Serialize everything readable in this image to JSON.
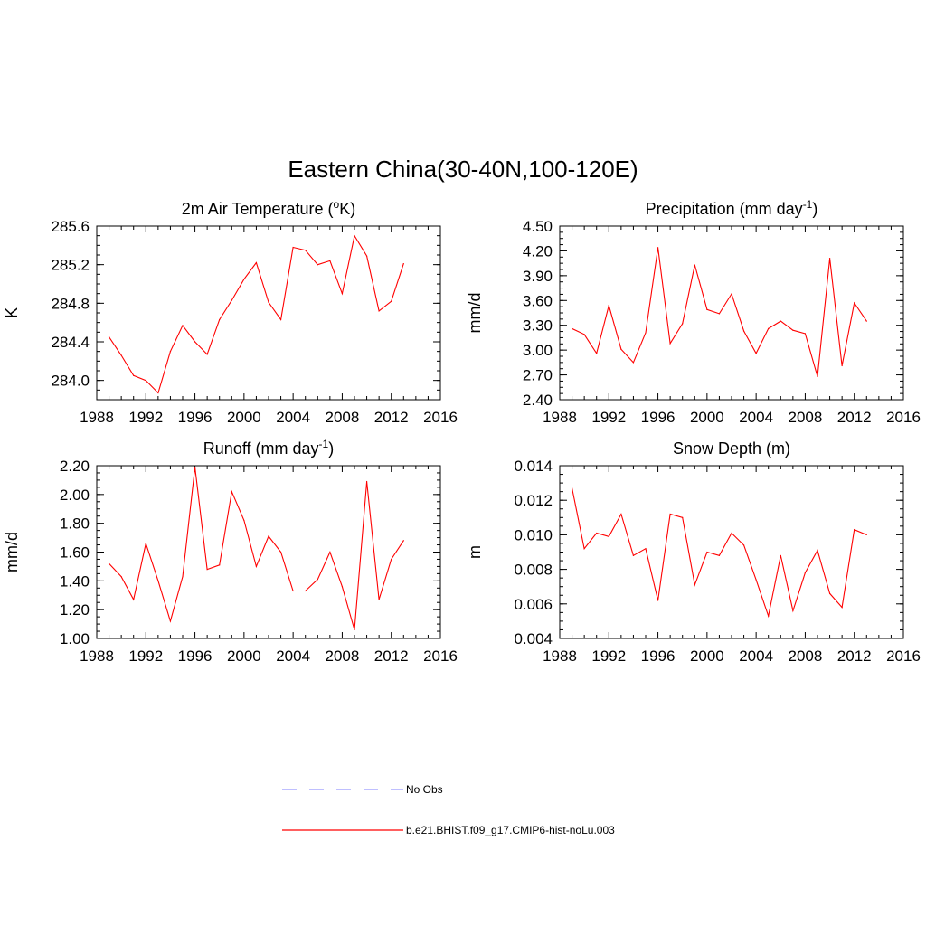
{
  "title": "Eastern China(30-40N,100-120E)",
  "legend": {
    "items": [
      {
        "label": "No Obs",
        "color": "#9999ff",
        "dash": true
      },
      {
        "label": "b.e21.BHIST.f09_g17.CMIP6-hist-noLu.003",
        "color": "#ff0000",
        "dash": false
      }
    ]
  },
  "chart_data": [
    {
      "type": "line",
      "title": "2m Air Temperature (",
      "title_sup": "o",
      "title_after": "K)",
      "ylabel": "K",
      "xlim": [
        1988,
        2016
      ],
      "ylim": [
        283.8,
        285.6
      ],
      "xticks": [
        "1988",
        "1992",
        "1996",
        "2000",
        "2004",
        "2008",
        "2012",
        "2016"
      ],
      "yticks": [
        "284.0",
        "284.4",
        "284.8",
        "285.2",
        "285.6"
      ],
      "series": [
        {
          "color": "#ff0000",
          "x": [
            1989,
            1990,
            1991,
            1992,
            1993,
            1994,
            1995,
            1996,
            1997,
            1998,
            1999,
            2000,
            2001,
            2002,
            2003,
            2004,
            2005,
            2006,
            2007,
            2008,
            2009,
            2010,
            2011,
            2012,
            2013
          ],
          "y": [
            284.45,
            284.26,
            284.05,
            284.0,
            283.87,
            284.3,
            284.57,
            284.4,
            284.27,
            284.63,
            284.83,
            285.05,
            285.22,
            284.81,
            284.63,
            285.38,
            285.35,
            285.2,
            285.24,
            284.9,
            285.5,
            285.29,
            284.72,
            284.82,
            285.21
          ]
        }
      ]
    },
    {
      "type": "line",
      "title": "Precipitation (mm day",
      "title_sup": "-1",
      "title_after": ")",
      "ylabel": "mm/d",
      "xlim": [
        1988,
        2016
      ],
      "ylim": [
        2.4,
        4.5
      ],
      "xticks": [
        "1988",
        "1992",
        "1996",
        "2000",
        "2004",
        "2008",
        "2012",
        "2016"
      ],
      "yticks": [
        "2.40",
        "2.70",
        "3.00",
        "3.30",
        "3.60",
        "3.90",
        "4.20",
        "4.50"
      ],
      "series": [
        {
          "color": "#ff0000",
          "x": [
            1989,
            1990,
            1991,
            1992,
            1993,
            1994,
            1995,
            1996,
            1997,
            1998,
            1999,
            2000,
            2001,
            2002,
            2003,
            2004,
            2005,
            2006,
            2007,
            2008,
            2009,
            2010,
            2011,
            2012,
            2013
          ],
          "y": [
            3.26,
            3.19,
            2.96,
            3.54,
            3.01,
            2.85,
            3.21,
            4.24,
            3.08,
            3.32,
            4.03,
            3.49,
            3.44,
            3.68,
            3.23,
            2.96,
            3.26,
            3.35,
            3.24,
            3.2,
            2.68,
            4.11,
            2.81,
            3.57,
            3.35
          ]
        }
      ]
    },
    {
      "type": "line",
      "title": "Runoff (mm day",
      "title_sup": "-1",
      "title_after": ")",
      "ylabel": "mm/d",
      "xlim": [
        1988,
        2016
      ],
      "ylim": [
        1.0,
        2.2
      ],
      "xticks": [
        "1988",
        "1992",
        "1996",
        "2000",
        "2004",
        "2008",
        "2012",
        "2016"
      ],
      "yticks": [
        "1.00",
        "1.20",
        "1.40",
        "1.60",
        "1.80",
        "2.00",
        "2.20"
      ],
      "series": [
        {
          "color": "#ff0000",
          "x": [
            1989,
            1990,
            1991,
            1992,
            1993,
            1994,
            1995,
            1996,
            1997,
            1998,
            1999,
            2000,
            2001,
            2002,
            2003,
            2004,
            2005,
            2006,
            2007,
            2008,
            2009,
            2010,
            2011,
            2012,
            2013
          ],
          "y": [
            1.52,
            1.43,
            1.27,
            1.66,
            1.4,
            1.12,
            1.43,
            2.19,
            1.48,
            1.51,
            2.02,
            1.82,
            1.5,
            1.71,
            1.6,
            1.33,
            1.33,
            1.41,
            1.6,
            1.36,
            1.06,
            2.09,
            1.27,
            1.55,
            1.68
          ]
        }
      ]
    },
    {
      "type": "line",
      "title": "Snow Depth (m)",
      "title_sup": "",
      "title_after": "",
      "ylabel": "m",
      "xlim": [
        1988,
        2016
      ],
      "ylim": [
        0.004,
        0.014
      ],
      "xticks": [
        "1988",
        "1992",
        "1996",
        "2000",
        "2004",
        "2008",
        "2012",
        "2016"
      ],
      "yticks": [
        "0.004",
        "0.006",
        "0.008",
        "0.010",
        "0.012",
        "0.014"
      ],
      "series": [
        {
          "color": "#ff0000",
          "x": [
            1989,
            1990,
            1991,
            1992,
            1993,
            1994,
            1995,
            1996,
            1997,
            1998,
            1999,
            2000,
            2001,
            2002,
            2003,
            2004,
            2005,
            2006,
            2007,
            2008,
            2009,
            2010,
            2011,
            2012,
            2013
          ],
          "y": [
            0.0127,
            0.0092,
            0.0101,
            0.0099,
            0.0112,
            0.0088,
            0.0092,
            0.0062,
            0.0112,
            0.011,
            0.0071,
            0.009,
            0.0088,
            0.0101,
            0.0094,
            0.0074,
            0.0053,
            0.0088,
            0.0056,
            0.0078,
            0.0091,
            0.0066,
            0.0058,
            0.0103,
            0.01
          ]
        }
      ]
    }
  ]
}
